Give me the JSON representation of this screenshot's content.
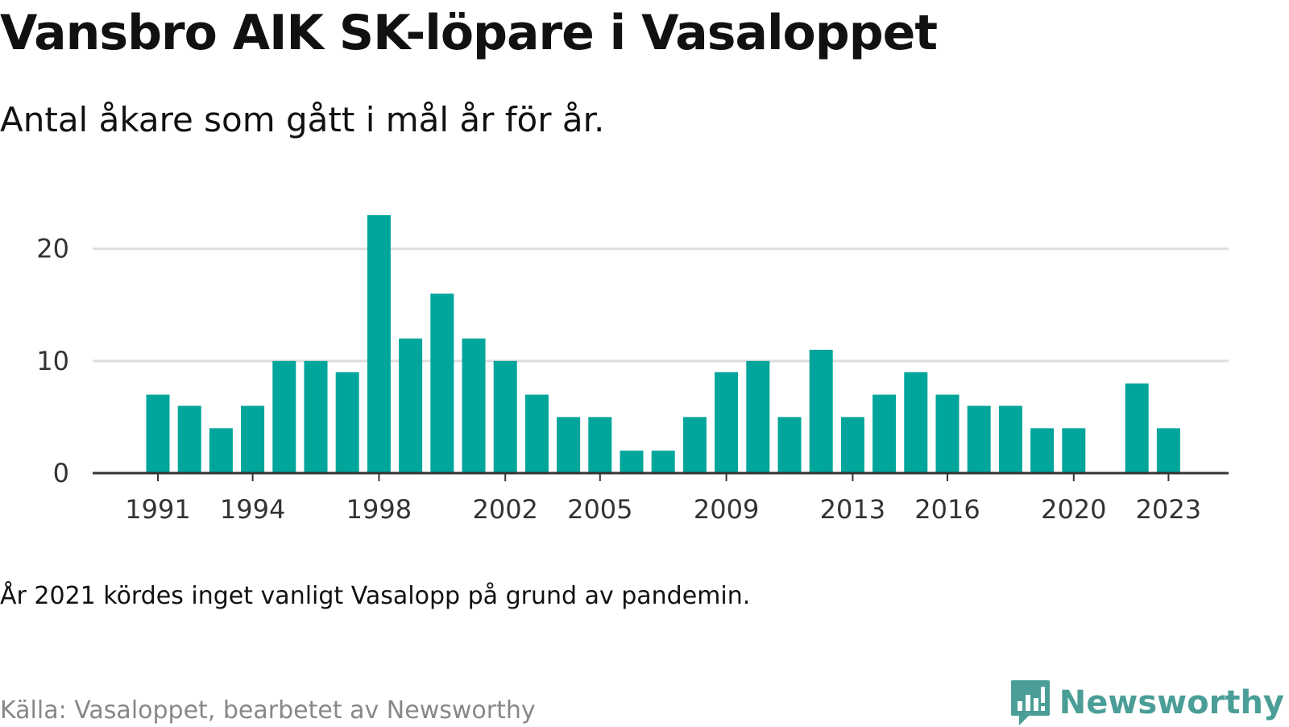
{
  "title": "Vansbro AIK SK-löpare i Vasaloppet",
  "subtitle": "Antal åkare som gått i mål år för år.",
  "note": "År 2021 kördes inget vanligt Vasalopp på grund av pandemin.",
  "source": "Källa: Vasaloppet, bearbetet av Newsworthy",
  "brand": {
    "name": "Newsworthy",
    "icon": "newsworthy-logo-icon",
    "color": "#4a9e97"
  },
  "colors": {
    "bar": "#00a59b",
    "grid": "#dddddd",
    "axis": "#333333"
  },
  "chart_data": {
    "type": "bar",
    "title": "Vansbro AIK SK-löpare i Vasaloppet",
    "subtitle": "Antal åkare som gått i mål år för år.",
    "xlabel": "",
    "ylabel": "",
    "categories": [
      1991,
      1992,
      1993,
      1994,
      1995,
      1996,
      1997,
      1998,
      1999,
      2000,
      2001,
      2002,
      2003,
      2004,
      2005,
      2006,
      2007,
      2008,
      2009,
      2010,
      2011,
      2012,
      2013,
      2014,
      2015,
      2016,
      2017,
      2018,
      2019,
      2020,
      2021,
      2022,
      2023
    ],
    "values": [
      7,
      6,
      4,
      6,
      10,
      10,
      9,
      23,
      12,
      16,
      12,
      10,
      7,
      5,
      5,
      2,
      2,
      5,
      9,
      10,
      5,
      11,
      5,
      7,
      9,
      7,
      6,
      6,
      4,
      4,
      null,
      8,
      4
    ],
    "x_tick_labels": [
      "1991",
      "1994",
      "1998",
      "2002",
      "2005",
      "2009",
      "2013",
      "2016",
      "2020",
      "2023"
    ],
    "y_ticks": [
      0,
      10,
      20
    ],
    "ylim": [
      0,
      23
    ],
    "grid": true,
    "legend": "none"
  }
}
